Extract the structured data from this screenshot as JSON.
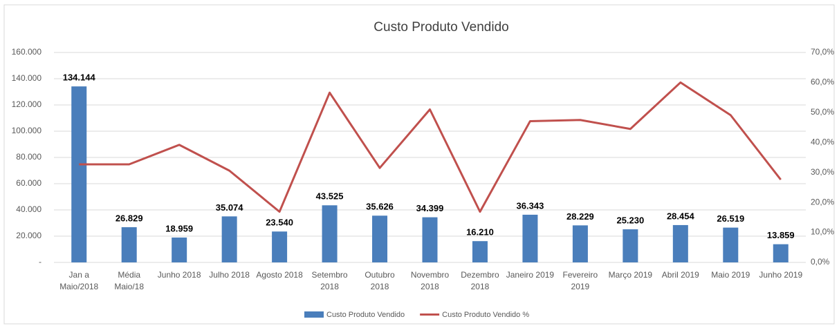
{
  "chart_data": {
    "type": "bar_line",
    "title": "Custo Produto Vendido",
    "categories": [
      "Jan a\nMaio/2018",
      "Média\nMaio/18",
      "Junho 2018",
      "Julho 2018",
      "Agosto 2018",
      "Setembro\n2018",
      "Outubro\n2018",
      "Novembro\n2018",
      "Dezembro\n2018",
      "Janeiro 2019",
      "Fevereiro\n2019",
      "Março 2019",
      "Abril 2019",
      "Maio 2019",
      "Junho 2019"
    ],
    "series": [
      {
        "name": "Custo Produto Vendido",
        "type": "bar",
        "color": "#4a7ebb",
        "values": [
          134144,
          26829,
          18959,
          35074,
          23540,
          43525,
          35626,
          34399,
          16210,
          36343,
          28229,
          25230,
          28454,
          26519,
          13859
        ],
        "value_labels": [
          "134.144",
          "26.829",
          "18.959",
          "35.074",
          "23.540",
          "43.525",
          "35.626",
          "34.399",
          "16.210",
          "36.343",
          "28.229",
          "25.230",
          "28.454",
          "26.519",
          "13.859"
        ]
      },
      {
        "name": "Custo Produto Vendido %",
        "type": "line",
        "axis": "y2",
        "color": "#c0504d",
        "values": [
          32.7,
          32.7,
          39.2,
          30.6,
          16.9,
          56.6,
          31.5,
          51.0,
          16.9,
          47.1,
          47.5,
          44.5,
          60.0,
          49.1,
          27.6
        ]
      }
    ],
    "ylim": [
      0,
      160000
    ],
    "yticks": [
      {
        "value": 0,
        "label": "-"
      },
      {
        "value": 20000,
        "label": "20.000"
      },
      {
        "value": 40000,
        "label": "40.000"
      },
      {
        "value": 60000,
        "label": "60.000"
      },
      {
        "value": 80000,
        "label": "80.000"
      },
      {
        "value": 100000,
        "label": "100.000"
      },
      {
        "value": 120000,
        "label": "120.000"
      },
      {
        "value": 140000,
        "label": "140.000"
      },
      {
        "value": 160000,
        "label": "160.000"
      }
    ],
    "y2lim": [
      0,
      70
    ],
    "y2ticks": [
      {
        "value": 0,
        "label": "0,0%"
      },
      {
        "value": 10,
        "label": "10,0%"
      },
      {
        "value": 20,
        "label": "20,0%"
      },
      {
        "value": 30,
        "label": "30,0%"
      },
      {
        "value": 40,
        "label": "40,0%"
      },
      {
        "value": 50,
        "label": "50,0%"
      },
      {
        "value": 60,
        "label": "60,0%"
      },
      {
        "value": 70,
        "label": "70,0%"
      }
    ],
    "grid": true,
    "legend": "bottom"
  }
}
